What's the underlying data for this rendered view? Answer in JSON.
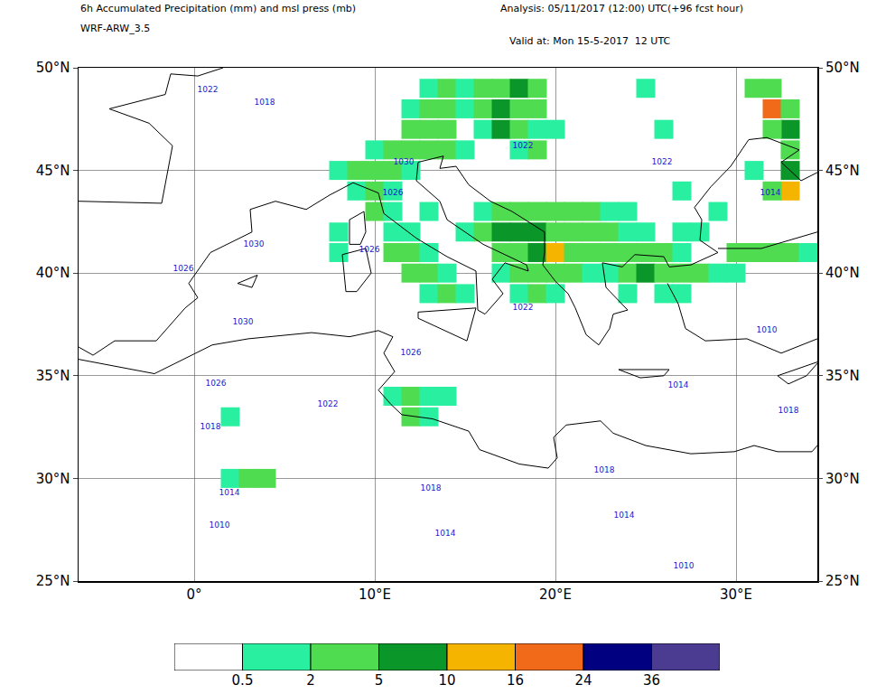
{
  "chart_data": {
    "type": "map",
    "title": "6h Accumulated Precipitation (mm) and msl press (mb)",
    "subtitle": "WRF-ARW_3.5",
    "annotations": [
      "Analysis: 05/11/2017 (12:00) UTC(+96 fcst hour)",
      "Valid at: Mon 15-5-2017  12 UTC"
    ],
    "xlim": [
      -6.4,
      34.5
    ],
    "ylim": [
      25,
      50
    ],
    "xticks": [
      {
        "value": 0,
        "label": "0°"
      },
      {
        "value": 10,
        "label": "10°E"
      },
      {
        "value": 20,
        "label": "20°E"
      },
      {
        "value": 30,
        "label": "30°E"
      }
    ],
    "yticks": [
      {
        "value": 25,
        "label": "25°N"
      },
      {
        "value": 30,
        "label": "30°N"
      },
      {
        "value": 35,
        "label": "35°N"
      },
      {
        "value": 40,
        "label": "40°N"
      },
      {
        "value": 45,
        "label": "45°N"
      },
      {
        "value": 50,
        "label": "50°N"
      }
    ],
    "grid": true,
    "colorbar": {
      "ticks": [
        0.5,
        2,
        5,
        10,
        16,
        24,
        36
      ],
      "colors": [
        "#ffffff",
        "#28f0a0",
        "#50dc50",
        "#0a9628",
        "#f5b400",
        "#f06a1a",
        "#000080",
        "#4b3c91"
      ]
    },
    "cells": [
      [
        13,
        49,
        1
      ],
      [
        14,
        49,
        3
      ],
      [
        15,
        49,
        1
      ],
      [
        16,
        49,
        3
      ],
      [
        17,
        49,
        4
      ],
      [
        18,
        49,
        6
      ],
      [
        19,
        49,
        3
      ],
      [
        12,
        48,
        1
      ],
      [
        13,
        48,
        3
      ],
      [
        14,
        48,
        2
      ],
      [
        15,
        48,
        1
      ],
      [
        16,
        48,
        4
      ],
      [
        17,
        48,
        7
      ],
      [
        18,
        48,
        4
      ],
      [
        19,
        48,
        2
      ],
      [
        12,
        47,
        3
      ],
      [
        13,
        47,
        3
      ],
      [
        14,
        47,
        2
      ],
      [
        16,
        47,
        1
      ],
      [
        17,
        47,
        6
      ],
      [
        18,
        47,
        3
      ],
      [
        19,
        47,
        1
      ],
      [
        20,
        47,
        1
      ],
      [
        10,
        46,
        1
      ],
      [
        11,
        46,
        3
      ],
      [
        12,
        46,
        2
      ],
      [
        13,
        46,
        4
      ],
      [
        14,
        46,
        2
      ],
      [
        15,
        46,
        1
      ],
      [
        18,
        46,
        1
      ],
      [
        19,
        46,
        2
      ],
      [
        8,
        45,
        1
      ],
      [
        9,
        45,
        2
      ],
      [
        10,
        45,
        3
      ],
      [
        11,
        45,
        2
      ],
      [
        12,
        45,
        1
      ],
      [
        9,
        44,
        1
      ],
      [
        10,
        44,
        2
      ],
      [
        11,
        44,
        1
      ],
      [
        8,
        42,
        1
      ],
      [
        10,
        43,
        2
      ],
      [
        11,
        43,
        1
      ],
      [
        13,
        43,
        1
      ],
      [
        16,
        43,
        1
      ],
      [
        17,
        43,
        2
      ],
      [
        18,
        43,
        3
      ],
      [
        19,
        43,
        3
      ],
      [
        20,
        43,
        2
      ],
      [
        21,
        43,
        3
      ],
      [
        22,
        43,
        2
      ],
      [
        23,
        43,
        1
      ],
      [
        24,
        43,
        1
      ],
      [
        11,
        42,
        1
      ],
      [
        12,
        42,
        1
      ],
      [
        15,
        42,
        1
      ],
      [
        16,
        42,
        2
      ],
      [
        17,
        42,
        5
      ],
      [
        18,
        42,
        6
      ],
      [
        19,
        42,
        6
      ],
      [
        20,
        42,
        4
      ],
      [
        21,
        42,
        3
      ],
      [
        22,
        42,
        2
      ],
      [
        23,
        42,
        2
      ],
      [
        24,
        42,
        1
      ],
      [
        25,
        42,
        1
      ],
      [
        8,
        41,
        1
      ],
      [
        11,
        41,
        2
      ],
      [
        12,
        41,
        3
      ],
      [
        13,
        41,
        1
      ],
      [
        17,
        41,
        3
      ],
      [
        18,
        41,
        4
      ],
      [
        19,
        41,
        5
      ],
      [
        20,
        41,
        12
      ],
      [
        21,
        41,
        4
      ],
      [
        22,
        41,
        2
      ],
      [
        23,
        41,
        2
      ],
      [
        24,
        41,
        2
      ],
      [
        25,
        41,
        3
      ],
      [
        26,
        41,
        2
      ],
      [
        27,
        41,
        1
      ],
      [
        30,
        41,
        2
      ],
      [
        31,
        41,
        3
      ],
      [
        32,
        41,
        2
      ],
      [
        33,
        41,
        2
      ],
      [
        34,
        41,
        1
      ],
      [
        12,
        40,
        2
      ],
      [
        13,
        40,
        3
      ],
      [
        14,
        40,
        1
      ],
      [
        17,
        40,
        1
      ],
      [
        18,
        40,
        2
      ],
      [
        19,
        40,
        3
      ],
      [
        20,
        40,
        3
      ],
      [
        21,
        40,
        2
      ],
      [
        22,
        40,
        1
      ],
      [
        23,
        40,
        1
      ],
      [
        24,
        40,
        3
      ],
      [
        25,
        40,
        5
      ],
      [
        26,
        40,
        3
      ],
      [
        27,
        40,
        2
      ],
      [
        28,
        40,
        2
      ],
      [
        29,
        40,
        1
      ],
      [
        30,
        40,
        1
      ],
      [
        13,
        39,
        1
      ],
      [
        14,
        39,
        2
      ],
      [
        15,
        39,
        1
      ],
      [
        18,
        39,
        1
      ],
      [
        19,
        39,
        2
      ],
      [
        20,
        39,
        1
      ],
      [
        24,
        39,
        1
      ],
      [
        26,
        39,
        1
      ],
      [
        27,
        39,
        1
      ],
      [
        31,
        49,
        2
      ],
      [
        32,
        49,
        3
      ],
      [
        32,
        48,
        18
      ],
      [
        33,
        48,
        4
      ],
      [
        33,
        47,
        6
      ],
      [
        32,
        47,
        2
      ],
      [
        33,
        46,
        3
      ],
      [
        33,
        45,
        8
      ],
      [
        33,
        44,
        12
      ],
      [
        32,
        44,
        2
      ],
      [
        31,
        45,
        1
      ],
      [
        11,
        34,
        1
      ],
      [
        12,
        34,
        2
      ],
      [
        12,
        33,
        2
      ],
      [
        13,
        33,
        1
      ],
      [
        13,
        34,
        1
      ],
      [
        14,
        34,
        1
      ],
      [
        2,
        30,
        1
      ],
      [
        3,
        30,
        2
      ],
      [
        4,
        30,
        3
      ],
      [
        2,
        33,
        1
      ],
      [
        27,
        42,
        1
      ],
      [
        28,
        42,
        1
      ],
      [
        29,
        43,
        1
      ],
      [
        27,
        44,
        1
      ],
      [
        25,
        49,
        1
      ],
      [
        26,
        47,
        1
      ]
    ],
    "isobar_labels": [
      [
        0.75,
        48.9,
        1022
      ],
      [
        3.9,
        48.3,
        1018
      ],
      [
        11.6,
        45.4,
        1030
      ],
      [
        11,
        43.9,
        1026
      ],
      [
        18.2,
        46.2,
        1022
      ],
      [
        25.9,
        45.4,
        1022
      ],
      [
        31.9,
        43.9,
        1014
      ],
      [
        3.3,
        41.4,
        1030
      ],
      [
        -0.6,
        40.2,
        1026
      ],
      [
        9.7,
        41.1,
        1026
      ],
      [
        2.7,
        37.6,
        1030
      ],
      [
        18.2,
        38.3,
        1022
      ],
      [
        12,
        36.1,
        1026
      ],
      [
        1.2,
        34.6,
        1026
      ],
      [
        26.8,
        34.5,
        1014
      ],
      [
        31.7,
        37.2,
        1010
      ],
      [
        7.4,
        33.6,
        1022
      ],
      [
        0.9,
        32.5,
        1018
      ],
      [
        1.95,
        29.3,
        1014
      ],
      [
        13.1,
        29.5,
        1018
      ],
      [
        22.7,
        30.4,
        1018
      ],
      [
        23.8,
        28.2,
        1014
      ],
      [
        1.4,
        27.7,
        1010
      ],
      [
        13.9,
        27.3,
        1014
      ],
      [
        27.1,
        25.7,
        1010
      ],
      [
        32.9,
        33.3,
        1018
      ]
    ],
    "coastlines": [
      [
        [
          -6.4,
          36.4
        ],
        [
          -5.6,
          36.0
        ],
        [
          -4.4,
          36.7
        ],
        [
          -2.1,
          36.7
        ],
        [
          -0.5,
          38.3
        ],
        [
          0.2,
          38.8
        ],
        [
          -0.3,
          39.5
        ],
        [
          0.9,
          41.0
        ],
        [
          3.2,
          42.0
        ],
        [
          3.1,
          43.1
        ],
        [
          4.5,
          43.5
        ],
        [
          6.2,
          43.1
        ],
        [
          7.5,
          43.8
        ],
        [
          8.8,
          44.4
        ],
        [
          10.2,
          43.9
        ],
        [
          10.5,
          42.9
        ],
        [
          12.3,
          41.7
        ],
        [
          14.0,
          40.8
        ],
        [
          15.6,
          40.1
        ],
        [
          15.7,
          38.2
        ],
        [
          16.1,
          38.0
        ],
        [
          17.1,
          39.0
        ],
        [
          16.5,
          39.7
        ],
        [
          17.2,
          40.5
        ],
        [
          18.5,
          40.1
        ],
        [
          18.4,
          40.4
        ],
        [
          16.0,
          41.4
        ],
        [
          14.0,
          42.6
        ],
        [
          13.6,
          43.5
        ],
        [
          12.3,
          44.5
        ],
        [
          12.4,
          45.4
        ],
        [
          13.8,
          45.7
        ],
        [
          13.6,
          45.1
        ],
        [
          14.5,
          45.2
        ],
        [
          15.2,
          44.3
        ],
        [
          16.4,
          43.5
        ],
        [
          17.6,
          43.0
        ],
        [
          19.4,
          42.0
        ],
        [
          19.4,
          41.0
        ],
        [
          19.3,
          40.4
        ],
        [
          20.0,
          39.6
        ],
        [
          20.7,
          39.0
        ],
        [
          21.1,
          38.3
        ],
        [
          21.7,
          37.0
        ],
        [
          22.4,
          36.5
        ],
        [
          23.0,
          37.3
        ],
        [
          23.2,
          38.0
        ],
        [
          24.0,
          38.2
        ],
        [
          22.8,
          39.3
        ],
        [
          22.6,
          40.5
        ],
        [
          23.7,
          40.3
        ],
        [
          24.4,
          40.9
        ],
        [
          26.0,
          40.8
        ],
        [
          26.3,
          40.3
        ],
        [
          27.5,
          40.4
        ],
        [
          29.0,
          41.0
        ],
        [
          28.0,
          41.6
        ],
        [
          28.1,
          42.6
        ],
        [
          27.7,
          43.2
        ],
        [
          28.6,
          44.2
        ],
        [
          29.7,
          45.2
        ],
        [
          30.7,
          46.5
        ],
        [
          31.7,
          46.6
        ],
        [
          33.5,
          46.0
        ],
        [
          32.5,
          45.4
        ],
        [
          33.6,
          44.5
        ],
        [
          34.5,
          44.9
        ]
      ],
      [
        [
          -6.4,
          43.5
        ],
        [
          -1.8,
          43.4
        ],
        [
          -1.2,
          46.2
        ],
        [
          -2.5,
          47.3
        ],
        [
          -4.7,
          48.0
        ],
        [
          -1.6,
          48.7
        ],
        [
          -1.3,
          49.7
        ],
        [
          0.2,
          49.6
        ],
        [
          1.6,
          50.0
        ]
      ],
      [
        [
          26.2,
          39.5
        ],
        [
          26.8,
          38.5
        ],
        [
          27.2,
          37.3
        ],
        [
          28.3,
          36.7
        ],
        [
          30.6,
          36.8
        ],
        [
          32.5,
          36.1
        ],
        [
          34.5,
          36.8
        ]
      ],
      [
        [
          29.0,
          41.2
        ],
        [
          31.4,
          41.2
        ],
        [
          34.5,
          42.0
        ]
      ],
      [
        [
          -6.4,
          35.8
        ],
        [
          -2.2,
          35.1
        ],
        [
          1.0,
          36.5
        ],
        [
          3.0,
          36.8
        ],
        [
          6.5,
          37.1
        ],
        [
          8.6,
          36.9
        ],
        [
          10.2,
          37.2
        ],
        [
          11.0,
          36.9
        ],
        [
          10.5,
          36.1
        ],
        [
          11.1,
          35.2
        ],
        [
          10.2,
          34.3
        ],
        [
          10.9,
          33.6
        ],
        [
          11.5,
          33.1
        ],
        [
          13.2,
          32.9
        ],
        [
          15.2,
          32.3
        ],
        [
          15.8,
          31.4
        ],
        [
          18.0,
          30.7
        ],
        [
          19.6,
          30.5
        ],
        [
          20.1,
          31.0
        ],
        [
          19.9,
          32.0
        ],
        [
          20.6,
          32.6
        ],
        [
          22.5,
          32.8
        ],
        [
          23.2,
          32.2
        ],
        [
          25.0,
          31.6
        ],
        [
          27.5,
          31.2
        ],
        [
          29.9,
          31.3
        ],
        [
          31.0,
          31.6
        ],
        [
          32.3,
          31.3
        ],
        [
          34.2,
          31.3
        ],
        [
          34.5,
          31.6
        ]
      ],
      [
        [
          12.4,
          38.1
        ],
        [
          15.6,
          38.3
        ],
        [
          15.1,
          36.7
        ],
        [
          12.4,
          37.8
        ],
        [
          12.4,
          38.1
        ]
      ],
      [
        [
          8.4,
          39.1
        ],
        [
          8.2,
          40.9
        ],
        [
          9.5,
          41.2
        ],
        [
          9.8,
          40.0
        ],
        [
          9.0,
          39.1
        ],
        [
          8.4,
          39.1
        ]
      ],
      [
        [
          8.6,
          41.4
        ],
        [
          8.6,
          42.6
        ],
        [
          9.4,
          43.0
        ],
        [
          9.5,
          42.0
        ],
        [
          9.2,
          41.4
        ],
        [
          8.6,
          41.4
        ]
      ],
      [
        [
          23.5,
          35.3
        ],
        [
          26.3,
          35.3
        ],
        [
          26.0,
          35.0
        ],
        [
          24.7,
          34.9
        ],
        [
          23.5,
          35.3
        ]
      ],
      [
        [
          32.3,
          35.0
        ],
        [
          34.6,
          35.7
        ],
        [
          33.9,
          35.0
        ],
        [
          32.9,
          34.6
        ],
        [
          32.3,
          35.0
        ]
      ],
      [
        [
          2.4,
          39.5
        ],
        [
          3.5,
          39.9
        ],
        [
          3.2,
          39.3
        ],
        [
          2.4,
          39.5
        ]
      ]
    ]
  }
}
